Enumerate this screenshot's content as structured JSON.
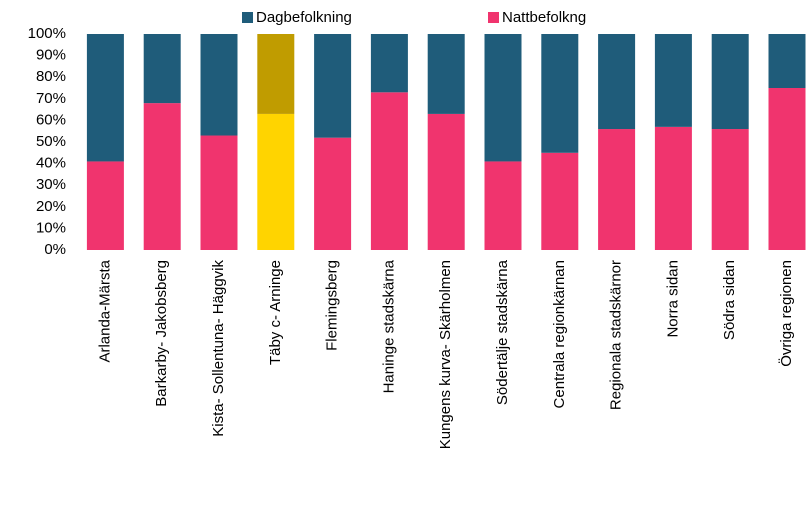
{
  "chart_data": {
    "type": "stacked_bar_100",
    "categories": [
      "Arlanda-Märsta",
      "Barkarby- Jakobsberg",
      "Kista- Sollentuna- Häggvik",
      "Täby c- Arninge",
      "Flemingsberg",
      "Haninge stadskärna",
      "Kungens kurva- Skärholmen",
      "Södertälje stadskärna",
      "Centrala regionkärnan",
      "Regionala stadskärnor",
      "Norra sidan",
      "Södra sidan",
      "Övriga regionen"
    ],
    "series": [
      {
        "name": "Dagbefolkning",
        "color": "#1f5c7a",
        "values": [
          59,
          32,
          47,
          37,
          48,
          27,
          37,
          59,
          55,
          44,
          43,
          44,
          25
        ],
        "colors": [
          "#1f5c7a",
          "#1f5c7a",
          "#1f5c7a",
          "#c09c00",
          "#1f5c7a",
          "#1f5c7a",
          "#1f5c7a",
          "#1f5c7a",
          "#1f5c7a",
          "#1f5c7a",
          "#1f5c7a",
          "#1f5c7a",
          "#1f5c7a"
        ]
      },
      {
        "name": "Nattbefolkng",
        "color": "#f0346e",
        "values": [
          41,
          68,
          53,
          63,
          52,
          73,
          63,
          41,
          45,
          56,
          57,
          56,
          75
        ],
        "colors": [
          "#f0346e",
          "#f0346e",
          "#f0346e",
          "#ffd400",
          "#f0346e",
          "#f0346e",
          "#f0346e",
          "#f0346e",
          "#f0346e",
          "#f0346e",
          "#f0346e",
          "#f0346e",
          "#f0346e"
        ]
      }
    ],
    "ylim": [
      0,
      100
    ],
    "yticks": [
      {
        "value": 0,
        "label": "0%"
      },
      {
        "value": 10,
        "label": "10%"
      },
      {
        "value": 20,
        "label": "20%"
      },
      {
        "value": 30,
        "label": "30%"
      },
      {
        "value": 40,
        "label": "40%"
      },
      {
        "value": 50,
        "label": "50%"
      },
      {
        "value": 60,
        "label": "60%"
      },
      {
        "value": 70,
        "label": "70%"
      },
      {
        "value": 80,
        "label": "80%"
      },
      {
        "value": 90,
        "label": "90%"
      },
      {
        "value": 100,
        "label": "100%"
      }
    ],
    "legend": "top",
    "grid": false
  }
}
